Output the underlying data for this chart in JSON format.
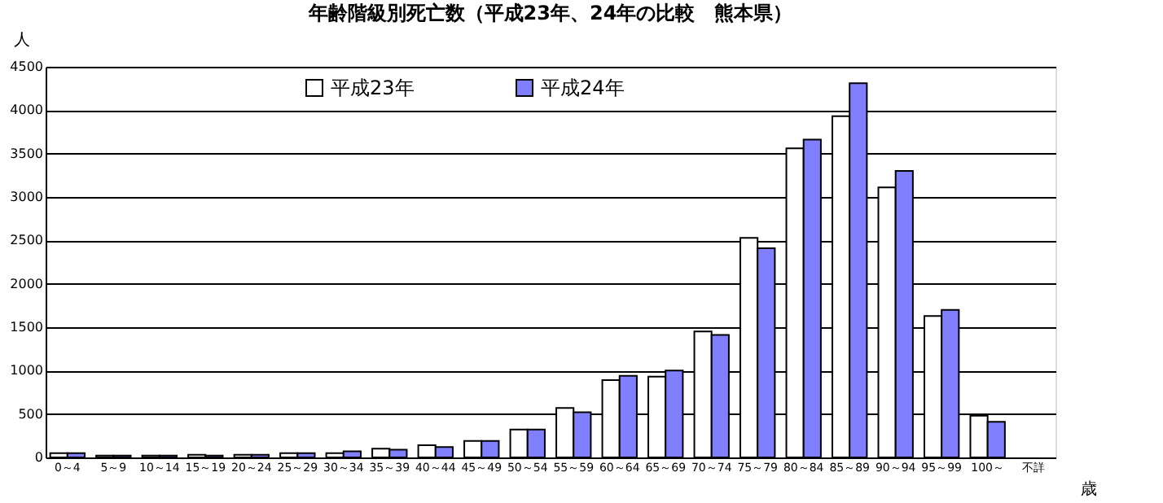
{
  "chart_data": {
    "type": "bar",
    "title": "年齢階級別死亡数（平成23年、24年の比較　熊本県）",
    "ylabel": "人",
    "xlabel": "歳",
    "categories": [
      "0～4",
      "5～9",
      "10～14",
      "15～19",
      "20～24",
      "25～29",
      "30～34",
      "35～39",
      "40～44",
      "45～49",
      "50～54",
      "55～59",
      "60～64",
      "65～69",
      "70～74",
      "75～79",
      "80～84",
      "85～89",
      "90～94",
      "95～99",
      "100～",
      "不詳"
    ],
    "series": [
      {
        "name": "平成23年",
        "color": "#ffffff",
        "values": [
          50,
          20,
          20,
          30,
          30,
          50,
          50,
          100,
          140,
          190,
          320,
          570,
          890,
          930,
          1450,
          2530,
          3560,
          3930,
          3110,
          1630,
          480,
          null
        ]
      },
      {
        "name": "平成24年",
        "color": "#8080ff",
        "values": [
          50,
          20,
          20,
          20,
          30,
          50,
          70,
          90,
          120,
          190,
          320,
          520,
          940,
          1000,
          1410,
          2410,
          3660,
          4310,
          3300,
          1700,
          410,
          null
        ]
      }
    ],
    "ylim": [
      0,
      4500
    ],
    "yticks": [
      0,
      500,
      1000,
      1500,
      2000,
      2500,
      3000,
      3500,
      4000,
      4500
    ],
    "grid": "y",
    "legend": "top"
  }
}
